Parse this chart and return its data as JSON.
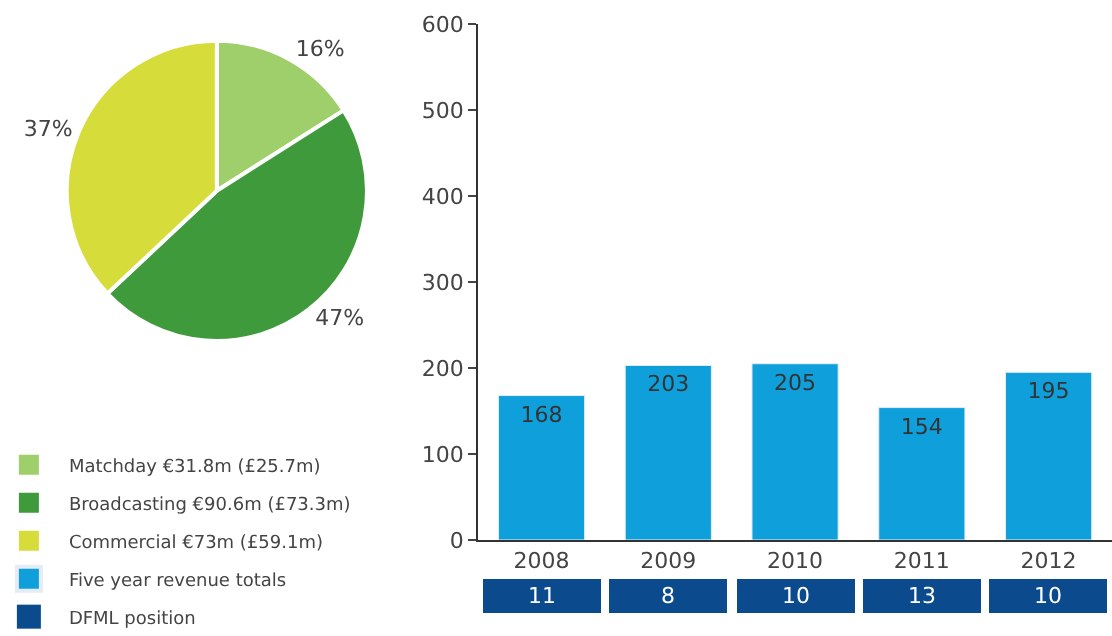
{
  "chart_data": [
    {
      "type": "pie",
      "categories": [
        "Matchday €31.8m (£25.7m)",
        "Broadcasting €90.6m (£73.3m)",
        "Commercial €73m (£59.1m)"
      ],
      "values": [
        16,
        47,
        37
      ],
      "colors": [
        "#9fcf6a",
        "#3f9a3c",
        "#d6dc3a"
      ],
      "value_labels": [
        "16%",
        "47%",
        "37%"
      ],
      "legend": "bottom"
    },
    {
      "type": "bar",
      "categories": [
        "2008",
        "2009",
        "2010",
        "2011",
        "2012"
      ],
      "series": [
        {
          "name": "Five year revenue totals",
          "color": "#0fa0dc",
          "values": [
            168,
            203,
            205,
            154,
            195
          ]
        }
      ],
      "ylim": [
        0,
        600
      ],
      "yticks": [
        0,
        100,
        200,
        300,
        400,
        500,
        600
      ],
      "data_labels": true,
      "legend": "left"
    },
    {
      "type": "other",
      "categories": [
        null,
        null,
        null,
        null,
        null
      ],
      "series": [
        {
          "name": "DFML position",
          "color": "#0b4a8c",
          "values": [
            11,
            8,
            10,
            13,
            10
          ]
        }
      ],
      "data_labels": true,
      "legend": "left"
    }
  ]
}
